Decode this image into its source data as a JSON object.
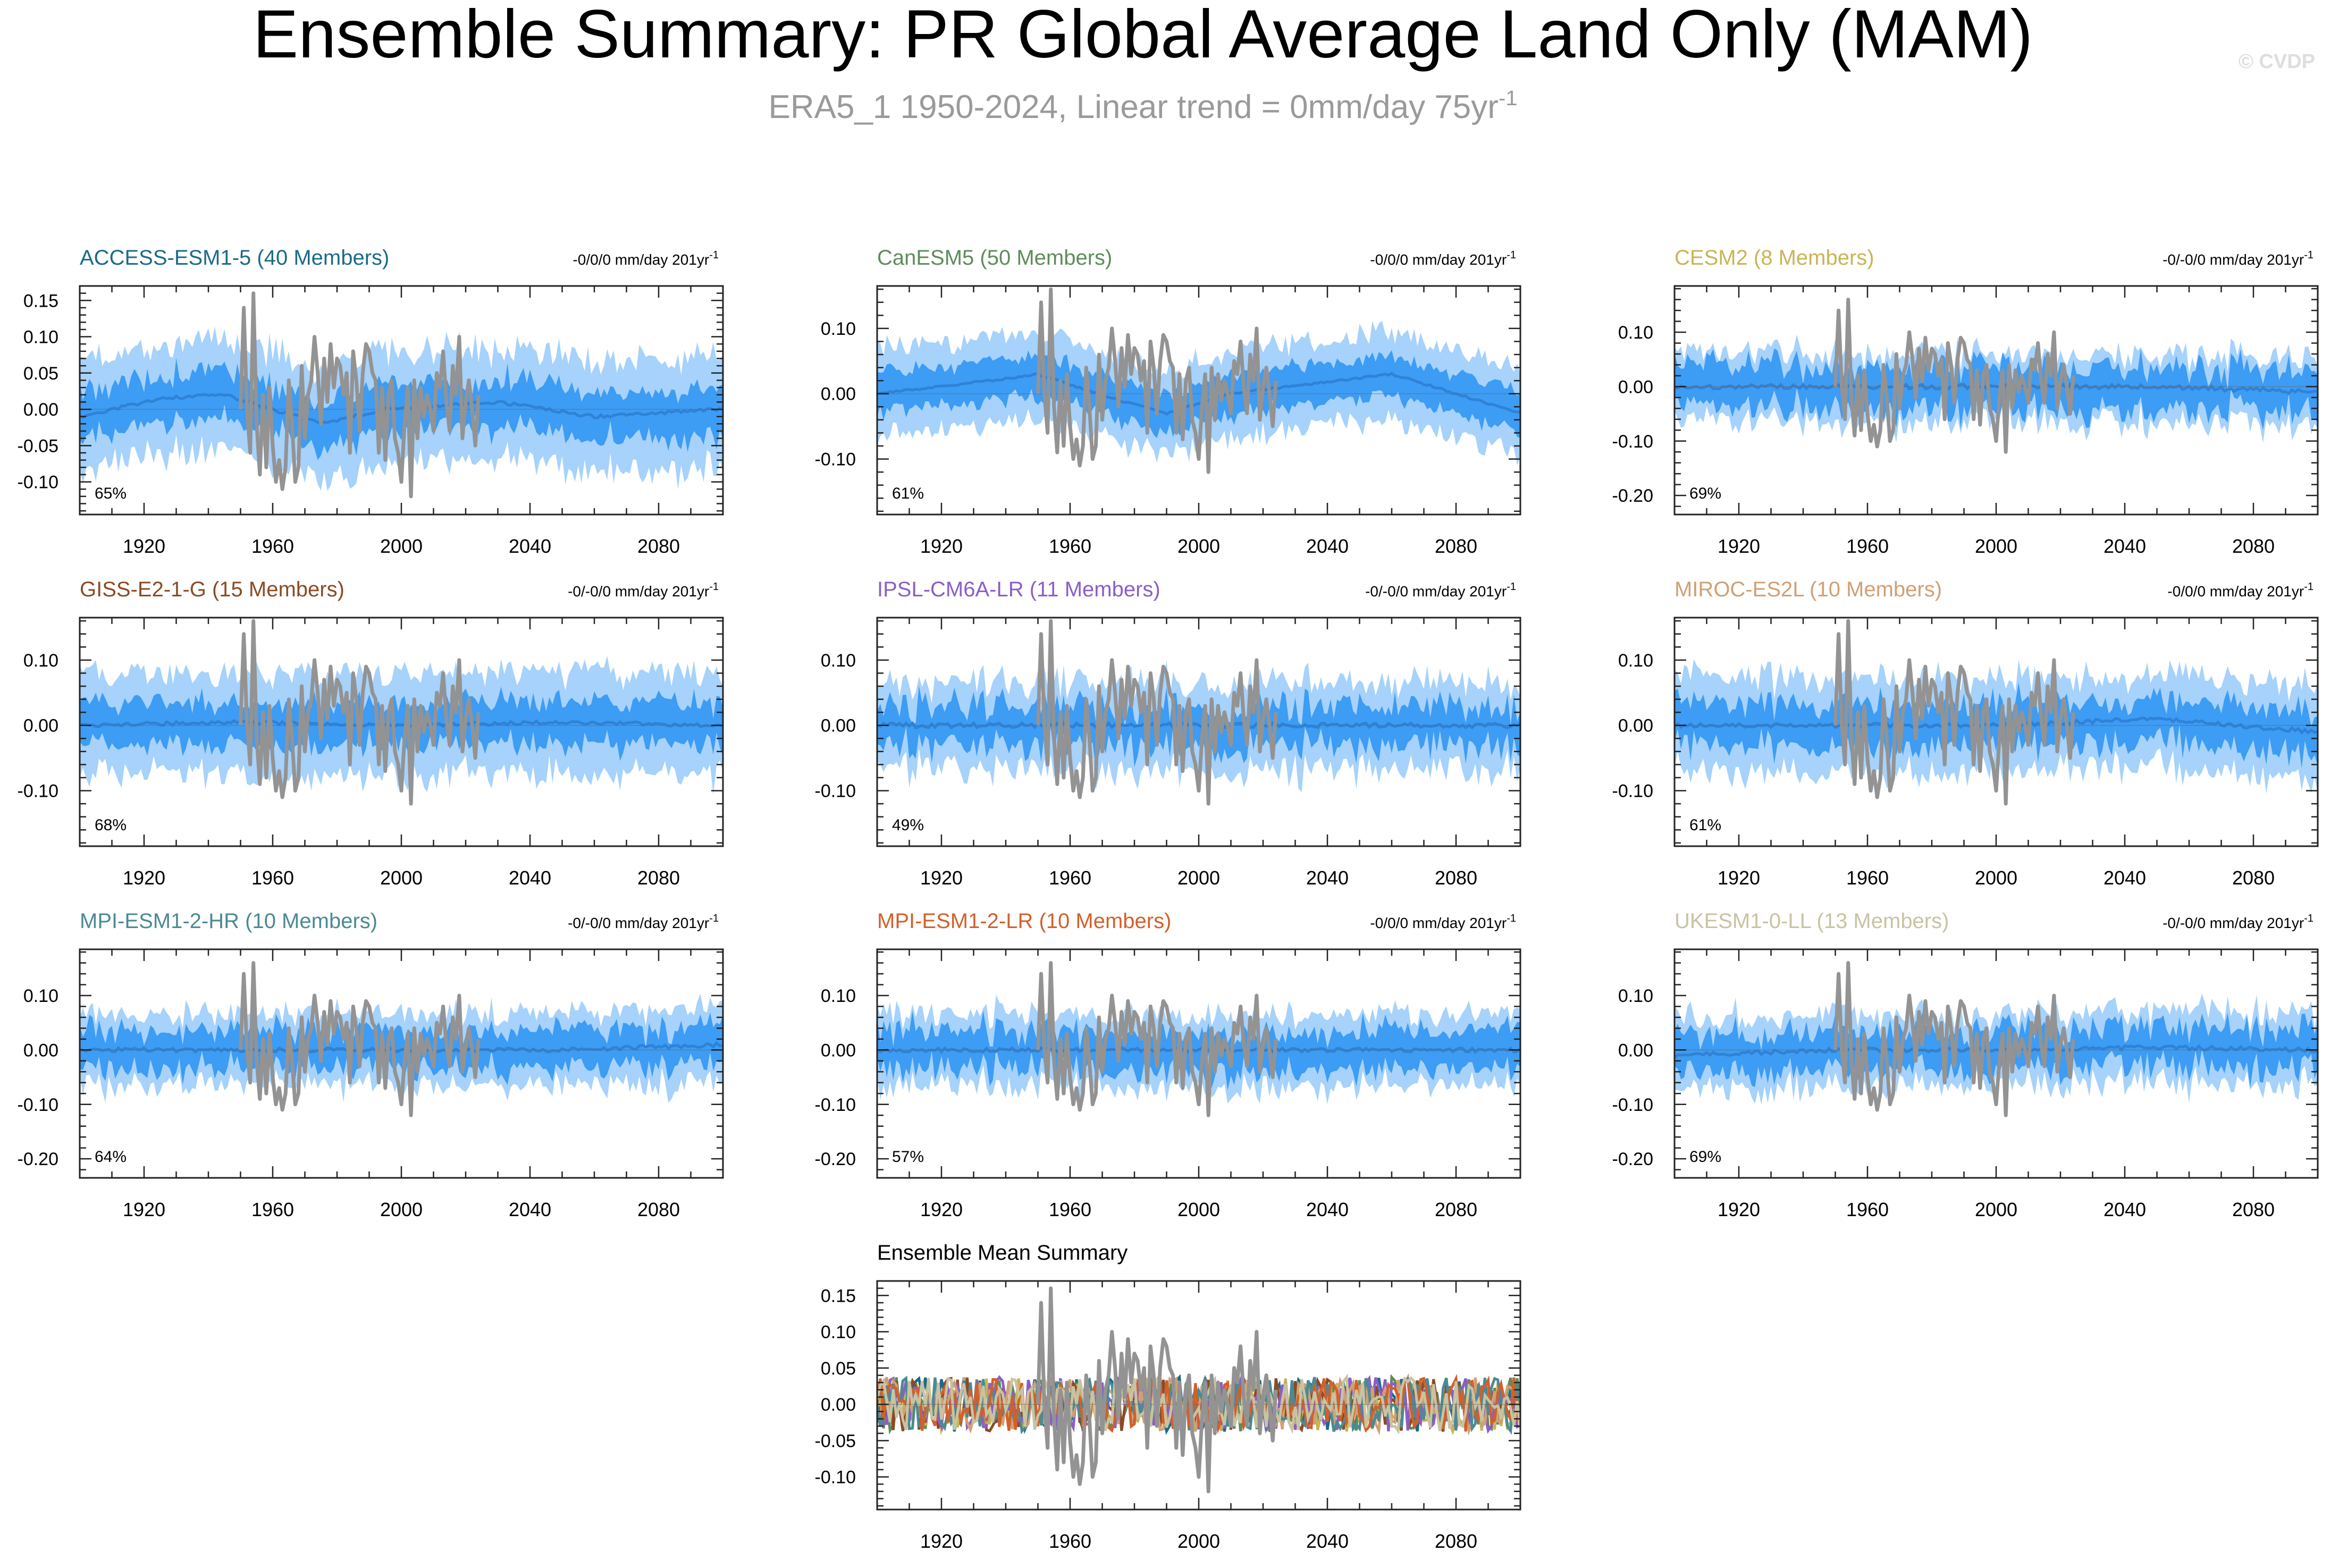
{
  "page": {
    "title": "Ensemble Summary: PR Global Average Land Only (MAM)",
    "subtitle": "ERA5_1 1950-2024, Linear trend = 0mm/day 75yr",
    "subtitle_sup": "-1",
    "watermark": "© CVDP"
  },
  "colors": {
    "band_outer": "#a6d2fb",
    "band_inner": "#3d9cf4",
    "ens_mean_line": "#2f82d6",
    "obs_line": "#939393",
    "axis": "#222222"
  },
  "chart_data": [
    {
      "type": "line",
      "title": "ACCESS-ESM1-5 (40 Members)",
      "title_color": "#1a6b88",
      "trend_label": "-0/0/0 mm/day 201yr",
      "trend_sup": "-1",
      "percent_label": "65%",
      "xlim": [
        1900,
        2100
      ],
      "xticks": [
        1920,
        1960,
        2000,
        2040,
        2080
      ],
      "ylim": [
        -0.145,
        0.17
      ],
      "yticks": [
        -0.1,
        -0.05,
        0.0,
        0.05,
        0.1,
        0.15
      ],
      "ytick_labels": [
        "-0.10",
        "-0.05",
        "0.00",
        "0.05",
        "0.10",
        "0.15"
      ],
      "band": {
        "outer": 0.075,
        "inner": 0.032,
        "noise": 0.018
      },
      "mean_shape": [
        [
          1900,
          -0.01
        ],
        [
          1925,
          0.015
        ],
        [
          1945,
          0.02
        ],
        [
          1975,
          -0.02
        ],
        [
          1995,
          0.0
        ],
        [
          2030,
          0.01
        ],
        [
          2060,
          -0.01
        ],
        [
          2100,
          0.0
        ]
      ]
    },
    {
      "type": "line",
      "title": "CanESM5 (50 Members)",
      "title_color": "#5e8c5a",
      "trend_label": "-0/0/0 mm/day 201yr",
      "trend_sup": "-1",
      "percent_label": "61%",
      "xlim": [
        1900,
        2100
      ],
      "xticks": [
        1920,
        1960,
        2000,
        2040,
        2080
      ],
      "ylim": [
        -0.185,
        0.165
      ],
      "yticks": [
        -0.1,
        0.0,
        0.1
      ],
      "ytick_labels": [
        "-0.10",
        "0.00",
        "0.10"
      ],
      "band": {
        "outer": 0.065,
        "inner": 0.03,
        "noise": 0.012
      },
      "mean_shape": [
        [
          1900,
          0.0
        ],
        [
          1935,
          0.02
        ],
        [
          1950,
          0.03
        ],
        [
          1975,
          -0.01
        ],
        [
          1990,
          -0.03
        ],
        [
          2010,
          0.0
        ],
        [
          2060,
          0.03
        ],
        [
          2100,
          -0.03
        ]
      ]
    },
    {
      "type": "line",
      "title": "CESM2 (8 Members)",
      "title_color": "#c8b556",
      "trend_label": "-0/-0/0 mm/day 201yr",
      "trend_sup": "-1",
      "percent_label": "69%",
      "xlim": [
        1900,
        2100
      ],
      "xticks": [
        1920,
        1960,
        2000,
        2040,
        2080
      ],
      "ylim": [
        -0.235,
        0.185
      ],
      "yticks": [
        -0.2,
        -0.1,
        0.0,
        0.1
      ],
      "ytick_labels": [
        "-0.20",
        "-0.10",
        "0.00",
        "0.10"
      ],
      "band": {
        "outer": 0.06,
        "inner": 0.038,
        "noise": 0.035
      },
      "mean_shape": [
        [
          1900,
          0.0
        ],
        [
          1950,
          0.0
        ],
        [
          2000,
          0.0
        ],
        [
          2050,
          0.0
        ],
        [
          2100,
          -0.01
        ]
      ]
    },
    {
      "type": "line",
      "title": "GISS-E2-1-G (15 Members)",
      "title_color": "#8a4b25",
      "trend_label": "-0/-0/0 mm/day 201yr",
      "trend_sup": "-1",
      "percent_label": "68%",
      "xlim": [
        1900,
        2100
      ],
      "xticks": [
        1920,
        1960,
        2000,
        2040,
        2080
      ],
      "ylim": [
        -0.185,
        0.165
      ],
      "yticks": [
        -0.1,
        0.0,
        0.1
      ],
      "ytick_labels": [
        "-0.10",
        "0.00",
        "0.10"
      ],
      "band": {
        "outer": 0.075,
        "inner": 0.032,
        "noise": 0.022
      },
      "mean_shape": [
        [
          1900,
          0.0
        ],
        [
          1950,
          0.005
        ],
        [
          2000,
          0.0
        ],
        [
          2050,
          0.005
        ],
        [
          2100,
          0.0
        ]
      ]
    },
    {
      "type": "line",
      "title": "IPSL-CM6A-LR (11 Members)",
      "title_color": "#8a5ec7",
      "trend_label": "-0/-0/0 mm/day 201yr",
      "trend_sup": "-1",
      "percent_label": "49%",
      "xlim": [
        1900,
        2100
      ],
      "xticks": [
        1920,
        1960,
        2000,
        2040,
        2080
      ],
      "ylim": [
        -0.185,
        0.165
      ],
      "yticks": [
        -0.1,
        0.0,
        0.1
      ],
      "ytick_labels": [
        "-0.10",
        "0.00",
        "0.10"
      ],
      "band": {
        "outer": 0.065,
        "inner": 0.03,
        "noise": 0.03
      },
      "mean_shape": [
        [
          1900,
          0.0
        ],
        [
          1950,
          0.0
        ],
        [
          2000,
          0.0
        ],
        [
          2050,
          0.0
        ],
        [
          2100,
          0.0
        ]
      ]
    },
    {
      "type": "line",
      "title": "MIROC-ES2L (10 Members)",
      "title_color": "#d0a074",
      "trend_label": "-0/0/0 mm/day 201yr",
      "trend_sup": "-1",
      "percent_label": "61%",
      "xlim": [
        1900,
        2100
      ],
      "xticks": [
        1920,
        1960,
        2000,
        2040,
        2080
      ],
      "ylim": [
        -0.185,
        0.165
      ],
      "yticks": [
        -0.1,
        0.0,
        0.1
      ],
      "ytick_labels": [
        "-0.10",
        "0.00",
        "0.10"
      ],
      "band": {
        "outer": 0.07,
        "inner": 0.032,
        "noise": 0.025
      },
      "mean_shape": [
        [
          1900,
          0.0
        ],
        [
          1950,
          0.0
        ],
        [
          2000,
          0.0
        ],
        [
          2050,
          0.01
        ],
        [
          2100,
          -0.01
        ]
      ]
    },
    {
      "type": "line",
      "title": "MPI-ESM1-2-HR (10 Members)",
      "title_color": "#4a8a94",
      "trend_label": "-0/-0/0 mm/day 201yr",
      "trend_sup": "-1",
      "percent_label": "64%",
      "xlim": [
        1900,
        2100
      ],
      "xticks": [
        1920,
        1960,
        2000,
        2040,
        2080
      ],
      "ylim": [
        -0.235,
        0.185
      ],
      "yticks": [
        -0.2,
        -0.1,
        0.0,
        0.1
      ],
      "ytick_labels": [
        "-0.20",
        "-0.10",
        "0.00",
        "0.10"
      ],
      "band": {
        "outer": 0.065,
        "inner": 0.035,
        "noise": 0.03
      },
      "mean_shape": [
        [
          1900,
          0.0
        ],
        [
          1950,
          0.0
        ],
        [
          2000,
          0.0
        ],
        [
          2050,
          0.0
        ],
        [
          2100,
          0.01
        ]
      ]
    },
    {
      "type": "line",
      "title": "MPI-ESM1-2-LR (10 Members)",
      "title_color": "#d2602b",
      "trend_label": "-0/0/0 mm/day 201yr",
      "trend_sup": "-1",
      "percent_label": "57%",
      "xlim": [
        1900,
        2100
      ],
      "xticks": [
        1920,
        1960,
        2000,
        2040,
        2080
      ],
      "ylim": [
        -0.235,
        0.185
      ],
      "yticks": [
        -0.2,
        -0.1,
        0.0,
        0.1
      ],
      "ytick_labels": [
        "-0.20",
        "-0.10",
        "0.00",
        "0.10"
      ],
      "band": {
        "outer": 0.065,
        "inner": 0.035,
        "noise": 0.03
      },
      "mean_shape": [
        [
          1900,
          0.0
        ],
        [
          1950,
          0.0
        ],
        [
          2000,
          0.0
        ],
        [
          2050,
          0.0
        ],
        [
          2100,
          0.0
        ]
      ]
    },
    {
      "type": "line",
      "title": "UKESM1-0-LL (13 Members)",
      "title_color": "#c8c3a2",
      "trend_label": "-0/-0/0 mm/day 201yr",
      "trend_sup": "-1",
      "percent_label": "69%",
      "xlim": [
        1900,
        2100
      ],
      "xticks": [
        1920,
        1960,
        2000,
        2040,
        2080
      ],
      "ylim": [
        -0.235,
        0.185
      ],
      "yticks": [
        -0.2,
        -0.1,
        0.0,
        0.1
      ],
      "ytick_labels": [
        "-0.20",
        "-0.10",
        "0.00",
        "0.10"
      ],
      "band": {
        "outer": 0.065,
        "inner": 0.035,
        "noise": 0.03
      },
      "mean_shape": [
        [
          1900,
          -0.01
        ],
        [
          1950,
          0.0
        ],
        [
          2000,
          0.0
        ],
        [
          2050,
          0.005
        ],
        [
          2100,
          0.0
        ]
      ]
    },
    {
      "type": "line",
      "title": "Ensemble Mean Summary",
      "title_color": "#000000",
      "trend_label": "",
      "trend_sup": "",
      "percent_label": "",
      "xlim": [
        1900,
        2100
      ],
      "xticks": [
        1920,
        1960,
        2000,
        2040,
        2080
      ],
      "ylim": [
        -0.145,
        0.17
      ],
      "yticks": [
        -0.1,
        -0.05,
        0.0,
        0.05,
        0.1,
        0.15
      ],
      "ytick_labels": [
        "-0.10",
        "-0.05",
        "0.00",
        "0.05",
        "0.10",
        "0.15"
      ],
      "summary": true,
      "series": [
        {
          "name": "ACCESS-ESM1-5",
          "color": "#1a6b88"
        },
        {
          "name": "CanESM5",
          "color": "#5e8c5a"
        },
        {
          "name": "CESM2",
          "color": "#c8b556"
        },
        {
          "name": "GISS-E2-1-G",
          "color": "#8a4b25"
        },
        {
          "name": "IPSL-CM6A-LR",
          "color": "#8a5ec7"
        },
        {
          "name": "MIROC-ES2L",
          "color": "#d0a074"
        },
        {
          "name": "MPI-ESM1-2-HR",
          "color": "#4a8a94"
        },
        {
          "name": "MPI-ESM1-2-LR",
          "color": "#d2602b"
        },
        {
          "name": "UKESM1-0-LL",
          "color": "#c8c3a2"
        }
      ]
    }
  ],
  "observations": {
    "name": "ERA5_1",
    "years": [
      1950,
      2024
    ],
    "values": [
      0.0,
      0.14,
      0.0,
      -0.06,
      0.16,
      -0.02,
      -0.09,
      0.02,
      -0.08,
      0.03,
      -0.05,
      -0.1,
      -0.07,
      -0.11,
      -0.08,
      0.04,
      -0.02,
      -0.1,
      -0.08,
      0.06,
      -0.04,
      0.02,
      0.04,
      0.1,
      0.05,
      -0.02,
      0.07,
      0.01,
      0.09,
      0.03,
      0.07,
      0.06,
      0.02,
      0.05,
      -0.06,
      0.08,
      0.04,
      -0.03,
      0.05,
      0.09,
      0.08,
      0.05,
      0.04,
      -0.06,
      0.03,
      -0.07,
      0.02,
      0.04,
      -0.04,
      -0.06,
      -0.1,
      -0.02,
      0.03,
      -0.12,
      0.04,
      -0.04,
      0.03,
      -0.01,
      0.02,
      0.0,
      -0.03,
      0.05,
      0.03,
      0.08,
      0.01,
      -0.03,
      0.06,
      0.02,
      0.1,
      -0.04,
      0.01,
      0.04,
      0.0,
      -0.05,
      0.02
    ]
  }
}
